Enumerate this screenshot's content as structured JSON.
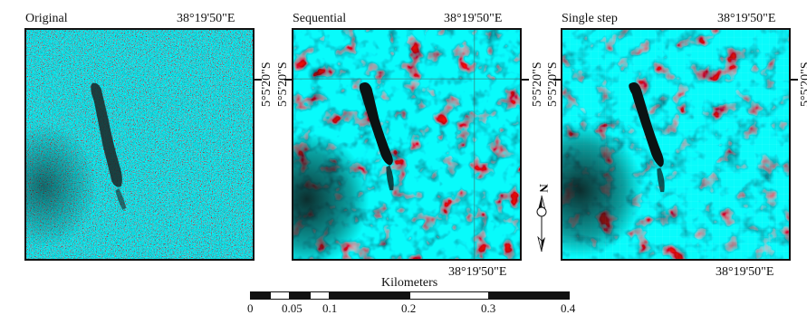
{
  "panels": [
    {
      "title": "Original",
      "top_coord": "38°19'50\"E",
      "bottom_coord": "",
      "lat": "5°5'20\"S"
    },
    {
      "title": "Sequential",
      "top_coord": "38°19'50\"E",
      "bottom_coord": "38°19'50\"E",
      "lat": "5°5'20\"S"
    },
    {
      "title": "Single step",
      "top_coord": "38°19'50\"E",
      "bottom_coord": "38°19'50\"E",
      "lat": "5°5'20\"S"
    }
  ],
  "scale_bar": {
    "title": "Kilometers",
    "ticks": [
      "0",
      "0.05",
      "0.1",
      "0.2",
      "0.3",
      "0.4"
    ]
  },
  "north_arrow": {
    "label": "N"
  },
  "colors": {
    "red": "#d6485a",
    "cyan": "#44c8c8",
    "dark": "#1a2a2a",
    "light": "#e9eded"
  }
}
